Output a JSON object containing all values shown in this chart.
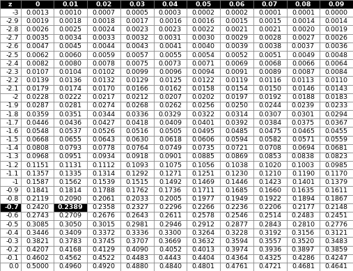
{
  "col_headers": [
    "z",
    "0",
    "0.01",
    "0.02",
    "0.03",
    "0.04",
    "0.05",
    "0.06",
    "0.07",
    "0.08",
    "0.09"
  ],
  "rows": [
    [
      "-3",
      "0.0013",
      "0.0010",
      "0.0007",
      "0.0005",
      "0.0003",
      "0.0002",
      "0.0002",
      "0.0001",
      "0.0001",
      "0.0000"
    ],
    [
      "-2.9",
      "0.0019",
      "0.0018",
      "0.0018",
      "0.0017",
      "0.0016",
      "0.0016",
      "0.0015",
      "0.0015",
      "0.0014",
      "0.0014"
    ],
    [
      "-2.8",
      "0.0026",
      "0.0025",
      "0.0024",
      "0.0023",
      "0.0023",
      "0.0022",
      "0.0021",
      "0.0021",
      "0.0020",
      "0.0019"
    ],
    [
      "-2.7",
      "0.0035",
      "0.0034",
      "0.0033",
      "0.0032",
      "0.0031",
      "0.0030",
      "0.0029",
      "0.0028",
      "0.0027",
      "0.0026"
    ],
    [
      "-2.6",
      "0.0047",
      "0.0045",
      "0.0044",
      "0.0043",
      "0.0041",
      "0.0040",
      "0.0039",
      "0.0038",
      "0.0037",
      "0.0036"
    ],
    [
      "-2.5",
      "0.0062",
      "0.0060",
      "0.0059",
      "0.0057",
      "0.0055",
      "0.0054",
      "0.0052",
      "0.0051",
      "0.0049",
      "0.0048"
    ],
    [
      "-2.4",
      "0.0082",
      "0.0080",
      "0.0078",
      "0.0075",
      "0.0073",
      "0.0071",
      "0.0069",
      "0.0068",
      "0.0066",
      "0.0064"
    ],
    [
      "-2.3",
      "0.0107",
      "0.0104",
      "0.0102",
      "0.0099",
      "0.0096",
      "0.0094",
      "0.0091",
      "0.0089",
      "0.0087",
      "0.0084"
    ],
    [
      "-2.2",
      "0.0139",
      "0.0136",
      "0.0132",
      "0.0129",
      "0.0125",
      "0.0122",
      "0.0119",
      "0.0116",
      "0.0113",
      "0.0110"
    ],
    [
      "-2.1",
      "0.0179",
      "0.0174",
      "0.0170",
      "0.0166",
      "0.0162",
      "0.0158",
      "0.0154",
      "0.0150",
      "0.0146",
      "0.0143"
    ],
    [
      "-2",
      "0.0228",
      "0.0222",
      "0.0217",
      "0.0212",
      "0.0207",
      "0.0202",
      "0.0197",
      "0.0192",
      "0.0188",
      "0.0183"
    ],
    [
      "-1.9",
      "0.0287",
      "0.0281",
      "0.0274",
      "0.0268",
      "0.0262",
      "0.0256",
      "0.0250",
      "0.0244",
      "0.0239",
      "0.0233"
    ],
    [
      "-1.8",
      "0.0359",
      "0.0351",
      "0.0344",
      "0.0336",
      "0.0329",
      "0.0322",
      "0.0314",
      "0.0307",
      "0.0301",
      "0.0294"
    ],
    [
      "-1.7",
      "0.0446",
      "0.0436",
      "0.0427",
      "0.0418",
      "0.0409",
      "0.0401",
      "0.0392",
      "0.0384",
      "0.0375",
      "0.0367"
    ],
    [
      "-1.6",
      "0.0548",
      "0.0537",
      "0.0526",
      "0.0516",
      "0.0505",
      "0.0495",
      "0.0485",
      "0.0475",
      "0.0465",
      "0.0455"
    ],
    [
      "-1.5",
      "0.0668",
      "0.0655",
      "0.0643",
      "0.0630",
      "0.0618",
      "0.0606",
      "0.0594",
      "0.0582",
      "0.0571",
      "0.0559"
    ],
    [
      "-1.4",
      "0.0808",
      "0.0793",
      "0.0778",
      "0.0764",
      "0.0749",
      "0.0735",
      "0.0721",
      "0.0708",
      "0.0694",
      "0.0681"
    ],
    [
      "-1.3",
      "0.0968",
      "0.0951",
      "0.0934",
      "0.0918",
      "0.0901",
      "0.0885",
      "0.0869",
      "0.0853",
      "0.0838",
      "0.0823"
    ],
    [
      "-1.2",
      "0.1151",
      "0.1131",
      "0.1112",
      "0.1093",
      "0.1075",
      "0.1056",
      "0.1038",
      "0.1020",
      "0.1003",
      "0.0985"
    ],
    [
      "-1.1",
      "0.1357",
      "0.1335",
      "0.1314",
      "0.1292",
      "0.1271",
      "0.1251",
      "0.1230",
      "0.1210",
      "0.1190",
      "0.1170"
    ],
    [
      "-1",
      "0.1587",
      "0.1562",
      "0.1539",
      "0.1515",
      "0.1492",
      "0.1469",
      "0.1446",
      "0.1423",
      "0.1401",
      "0.1379"
    ],
    [
      "-0.9",
      "0.1841",
      "0.1814",
      "0.1788",
      "0.1762",
      "0.1736",
      "0.1711",
      "0.1685",
      "0.1660",
      "0.1635",
      "0.1611"
    ],
    [
      "-0.8",
      "0.2119",
      "0.2090",
      "0.2061",
      "0.2033",
      "0.2005",
      "0.1977",
      "0.1949",
      "0.1922",
      "0.1894",
      "0.1867"
    ],
    [
      "-0.7",
      "0.2420",
      "0.2389",
      "0.2358",
      "0.2327",
      "0.2296",
      "0.2266",
      "0.2236",
      "0.2206",
      "0.2177",
      "0.2148"
    ],
    [
      "-0.6",
      "0.2743",
      "0.2709",
      "0.2676",
      "0.2643",
      "0.2611",
      "0.2578",
      "0.2546",
      "0.2514",
      "0.2483",
      "0.2451"
    ],
    [
      "-0.5",
      "0.3085",
      "0.3050",
      "0.3015",
      "0.2981",
      "0.2946",
      "0.2912",
      "0.2877",
      "0.2843",
      "0.2810",
      "0.2776"
    ],
    [
      "-0.4",
      "0.3446",
      "0.3409",
      "0.3372",
      "0.3336",
      "0.3300",
      "0.3264",
      "0.3228",
      "0.3192",
      "0.3156",
      "0.3121"
    ],
    [
      "-0.3",
      "0.3821",
      "0.3783",
      "0.3745",
      "0.3707",
      "0.3669",
      "0.3632",
      "0.3594",
      "0.3557",
      "0.3520",
      "0.3483"
    ],
    [
      "-0.2",
      "0.4207",
      "0.4168",
      "0.4129",
      "0.4090",
      "0.4052",
      "0.4013",
      "0.3974",
      "0.3936",
      "0.3897",
      "0.3859"
    ],
    [
      "-0.1",
      "0.4602",
      "0.4562",
      "0.4522",
      "0.4483",
      "0.4443",
      "0.4404",
      "0.4364",
      "0.4325",
      "0.4286",
      "0.4247"
    ],
    [
      "0.0",
      "0.5000",
      "0.4960",
      "0.4920",
      "0.4880",
      "0.4840",
      "0.4801",
      "0.4761",
      "0.4721",
      "0.4681",
      "0.4641"
    ]
  ],
  "highlight_row_idx": 23,
  "highlight_col_idx": 2,
  "header_bg": "#000000",
  "header_fg": "#ffffff",
  "highlight_bg": "#000000",
  "highlight_fg": "#ffffff",
  "cell_bg": "#ffffff",
  "cell_fg": "#000000",
  "border_color": "#808080",
  "font_size": 6.8,
  "fig_width": 5.07,
  "fig_height": 3.89,
  "dpi": 100
}
